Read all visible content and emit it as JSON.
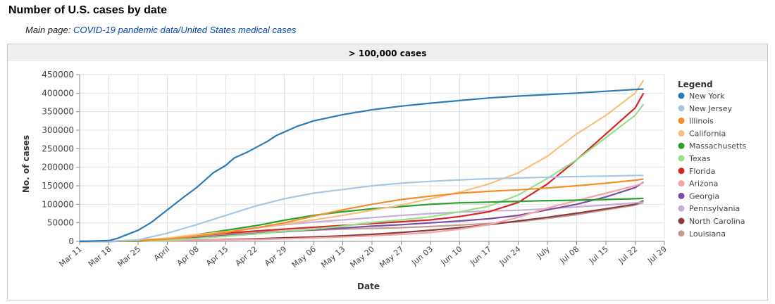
{
  "page": {
    "heading": "Number of U.S. cases by date",
    "main_prefix": "Main page: ",
    "main_link": "COVID-19 pandemic data/United States medical cases"
  },
  "chart_data": {
    "type": "line",
    "title": "> 100,000 cases",
    "xlabel": "Date",
    "ylabel": "No. of cases",
    "ylim": [
      0,
      450000
    ],
    "y_ticks": [
      0,
      50000,
      100000,
      150000,
      200000,
      250000,
      300000,
      350000,
      400000,
      450000
    ],
    "y_tick_labels": [
      "0",
      "50000",
      "100000",
      "150000",
      "200000",
      "250000",
      "300000",
      "350000",
      "400000",
      "450000"
    ],
    "x_tick_labels": [
      "Mar 11",
      "Mar 18",
      "Mar 25",
      "April",
      "Apr 08",
      "Apr 15",
      "Apr 22",
      "Apr 29",
      "May 06",
      "May 13",
      "May 20",
      "May 27",
      "Jun 03",
      "Jun 10",
      "Jun 17",
      "Jun 24",
      "July",
      "Jul 08",
      "Jul 15",
      "Jul 22",
      "Jul 29"
    ],
    "x_tick_days": [
      0,
      7,
      14,
      21,
      28,
      35,
      42,
      49,
      56,
      63,
      70,
      77,
      84,
      91,
      98,
      105,
      112,
      119,
      126,
      133,
      140
    ],
    "x_unit_note": "",
    "grid": true,
    "legend_title": "Legend",
    "legend_position": "right",
    "series": [
      {
        "name": "New York",
        "color": "#2c7bb6",
        "points": [
          [
            "Mar 11",
            0
          ],
          [
            "Mar 18",
            2000
          ],
          [
            "Mar 20",
            8000
          ],
          [
            "Mar 25",
            30000
          ],
          [
            "Mar 28",
            50000
          ],
          [
            "April",
            85000
          ],
          [
            "Apr 05",
            120000
          ],
          [
            "Apr 08",
            145000
          ],
          [
            "Apr 10",
            165000
          ],
          [
            "Apr 12",
            185000
          ],
          [
            "Apr 15",
            205000
          ],
          [
            "Apr 17",
            225000
          ],
          [
            "Apr 20",
            240000
          ],
          [
            "Apr 22",
            252000
          ],
          [
            "Apr 25",
            270000
          ],
          [
            "Apr 27",
            285000
          ],
          [
            "Apr 29",
            295000
          ],
          [
            "May 02",
            310000
          ],
          [
            "May 06",
            325000
          ],
          [
            "May 13",
            342000
          ],
          [
            "May 20",
            355000
          ],
          [
            "May 27",
            365000
          ],
          [
            "Jun 03",
            373000
          ],
          [
            "Jun 10",
            380000
          ],
          [
            "Jun 17",
            387000
          ],
          [
            "Jun 24",
            392000
          ],
          [
            "July",
            396000
          ],
          [
            "Jul 08",
            400000
          ],
          [
            "Jul 15",
            405000
          ],
          [
            "Jul 22",
            410000
          ],
          [
            "Jul 24",
            411000
          ]
        ]
      },
      {
        "name": "New Jersey",
        "color": "#a6c8e8",
        "points": [
          [
            "Mar 11",
            0
          ],
          [
            "Mar 18",
            0
          ],
          [
            "Mar 25",
            4000
          ],
          [
            "April",
            22000
          ],
          [
            "Apr 08",
            45000
          ],
          [
            "Apr 15",
            70000
          ],
          [
            "Apr 22",
            95000
          ],
          [
            "Apr 29",
            115000
          ],
          [
            "May 06",
            130000
          ],
          [
            "May 13",
            140000
          ],
          [
            "May 20",
            150000
          ],
          [
            "May 27",
            157000
          ],
          [
            "Jun 03",
            162000
          ],
          [
            "Jun 10",
            166000
          ],
          [
            "Jun 17",
            169000
          ],
          [
            "Jun 24",
            171000
          ],
          [
            "July",
            173000
          ],
          [
            "Jul 08",
            175000
          ],
          [
            "Jul 15",
            176000
          ],
          [
            "Jul 22",
            178000
          ],
          [
            "Jul 24",
            178000
          ]
        ]
      },
      {
        "name": "Illinois",
        "color": "#f28e2b",
        "points": [
          [
            "Mar 11",
            0
          ],
          [
            "Mar 18",
            0
          ],
          [
            "Mar 25",
            2000
          ],
          [
            "April",
            6000
          ],
          [
            "Apr 08",
            14000
          ],
          [
            "Apr 15",
            24000
          ],
          [
            "Apr 22",
            36000
          ],
          [
            "Apr 29",
            50000
          ],
          [
            "May 06",
            68000
          ],
          [
            "May 13",
            85000
          ],
          [
            "May 20",
            100000
          ],
          [
            "May 27",
            113000
          ],
          [
            "Jun 03",
            122000
          ],
          [
            "Jun 10",
            130000
          ],
          [
            "Jun 17",
            135000
          ],
          [
            "Jun 24",
            139000
          ],
          [
            "July",
            144000
          ],
          [
            "Jul 08",
            150000
          ],
          [
            "Jul 15",
            157000
          ],
          [
            "Jul 22",
            165000
          ],
          [
            "Jul 24",
            168000
          ]
        ]
      },
      {
        "name": "California",
        "color": "#fbbf7c",
        "points": [
          [
            "Mar 11",
            0
          ],
          [
            "Mar 18",
            0
          ],
          [
            "Mar 25",
            3000
          ],
          [
            "April",
            9000
          ],
          [
            "Apr 08",
            18000
          ],
          [
            "Apr 15",
            26000
          ],
          [
            "Apr 22",
            36000
          ],
          [
            "Apr 29",
            47000
          ],
          [
            "May 06",
            58000
          ],
          [
            "May 13",
            70000
          ],
          [
            "May 20",
            84000
          ],
          [
            "May 27",
            98000
          ],
          [
            "Jun 03",
            115000
          ],
          [
            "Jun 10",
            133000
          ],
          [
            "Jun 17",
            155000
          ],
          [
            "Jun 24",
            185000
          ],
          [
            "July",
            230000
          ],
          [
            "Jul 08",
            290000
          ],
          [
            "Jul 15",
            340000
          ],
          [
            "Jul 22",
            400000
          ],
          [
            "Jul 24",
            435000
          ]
        ]
      },
      {
        "name": "Massachusetts",
        "color": "#2ca02c",
        "points": [
          [
            "Mar 11",
            0
          ],
          [
            "Mar 18",
            0
          ],
          [
            "Mar 25",
            1000
          ],
          [
            "April",
            8000
          ],
          [
            "Apr 08",
            18000
          ],
          [
            "Apr 15",
            30000
          ],
          [
            "Apr 22",
            42000
          ],
          [
            "Apr 29",
            57000
          ],
          [
            "May 06",
            70000
          ],
          [
            "May 13",
            80000
          ],
          [
            "May 20",
            88000
          ],
          [
            "May 27",
            94000
          ],
          [
            "Jun 03",
            100000
          ],
          [
            "Jun 10",
            104000
          ],
          [
            "Jun 17",
            106000
          ],
          [
            "Jun 24",
            108000
          ],
          [
            "July",
            110000
          ],
          [
            "Jul 08",
            111000
          ],
          [
            "Jul 15",
            113000
          ],
          [
            "Jul 22",
            115000
          ],
          [
            "Jul 24",
            116000
          ]
        ]
      },
      {
        "name": "Texas",
        "color": "#98df8a",
        "points": [
          [
            "Mar 11",
            0
          ],
          [
            "Mar 18",
            0
          ],
          [
            "Mar 25",
            1000
          ],
          [
            "April",
            3000
          ],
          [
            "Apr 08",
            8000
          ],
          [
            "Apr 15",
            14000
          ],
          [
            "Apr 22",
            20000
          ],
          [
            "Apr 29",
            27000
          ],
          [
            "May 06",
            33000
          ],
          [
            "May 13",
            41000
          ],
          [
            "May 20",
            51000
          ],
          [
            "May 27",
            58000
          ],
          [
            "Jun 03",
            66000
          ],
          [
            "Jun 10",
            80000
          ],
          [
            "Jun 17",
            95000
          ],
          [
            "Jun 24",
            125000
          ],
          [
            "July",
            170000
          ],
          [
            "Jul 08",
            220000
          ],
          [
            "Jul 15",
            280000
          ],
          [
            "Jul 22",
            340000
          ],
          [
            "Jul 24",
            370000
          ]
        ]
      },
      {
        "name": "Florida",
        "color": "#d62728",
        "points": [
          [
            "Mar 11",
            0
          ],
          [
            "Mar 18",
            0
          ],
          [
            "Mar 25",
            2000
          ],
          [
            "April",
            7000
          ],
          [
            "Apr 08",
            15000
          ],
          [
            "Apr 15",
            22000
          ],
          [
            "Apr 22",
            28000
          ],
          [
            "Apr 29",
            33000
          ],
          [
            "May 06",
            38000
          ],
          [
            "May 13",
            43000
          ],
          [
            "May 20",
            48000
          ],
          [
            "May 27",
            53000
          ],
          [
            "Jun 03",
            58000
          ],
          [
            "Jun 10",
            67000
          ],
          [
            "Jun 17",
            80000
          ],
          [
            "Jun 24",
            105000
          ],
          [
            "July",
            155000
          ],
          [
            "Jul 08",
            220000
          ],
          [
            "Jul 15",
            290000
          ],
          [
            "Jul 22",
            360000
          ],
          [
            "Jul 24",
            400000
          ]
        ]
      },
      {
        "name": "Arizona",
        "color": "#f4a6a6",
        "points": [
          [
            "Mar 11",
            0
          ],
          [
            "Mar 18",
            0
          ],
          [
            "Mar 25",
            500
          ],
          [
            "April",
            1500
          ],
          [
            "Apr 08",
            3000
          ],
          [
            "Apr 15",
            4000
          ],
          [
            "Apr 22",
            5000
          ],
          [
            "Apr 29",
            7000
          ],
          [
            "May 06",
            9000
          ],
          [
            "May 13",
            12000
          ],
          [
            "May 20",
            15000
          ],
          [
            "May 27",
            19000
          ],
          [
            "Jun 03",
            24000
          ],
          [
            "Jun 10",
            33000
          ],
          [
            "Jun 17",
            45000
          ],
          [
            "Jun 24",
            65000
          ],
          [
            "July",
            90000
          ],
          [
            "Jul 08",
            110000
          ],
          [
            "Jul 15",
            130000
          ],
          [
            "Jul 22",
            150000
          ],
          [
            "Jul 24",
            158000
          ]
        ]
      },
      {
        "name": "Georgia",
        "color": "#7b4ea3",
        "points": [
          [
            "Mar 11",
            0
          ],
          [
            "Mar 18",
            0
          ],
          [
            "Mar 25",
            1500
          ],
          [
            "April",
            5000
          ],
          [
            "Apr 08",
            10000
          ],
          [
            "Apr 15",
            16000
          ],
          [
            "Apr 22",
            21000
          ],
          [
            "Apr 29",
            26000
          ],
          [
            "May 06",
            31000
          ],
          [
            "May 13",
            36000
          ],
          [
            "May 20",
            41000
          ],
          [
            "May 27",
            45000
          ],
          [
            "Jun 03",
            50000
          ],
          [
            "Jun 10",
            55000
          ],
          [
            "Jun 17",
            61000
          ],
          [
            "Jun 24",
            70000
          ],
          [
            "July",
            85000
          ],
          [
            "Jul 08",
            100000
          ],
          [
            "Jul 15",
            120000
          ],
          [
            "Jul 22",
            145000
          ],
          [
            "Jul 24",
            160000
          ]
        ]
      },
      {
        "name": "Pennsylvania",
        "color": "#c5b0d5",
        "points": [
          [
            "Mar 11",
            0
          ],
          [
            "Mar 18",
            0
          ],
          [
            "Mar 25",
            1500
          ],
          [
            "April",
            6000
          ],
          [
            "Apr 08",
            16000
          ],
          [
            "Apr 15",
            27000
          ],
          [
            "Apr 22",
            36000
          ],
          [
            "Apr 29",
            45000
          ],
          [
            "May 06",
            52000
          ],
          [
            "May 13",
            58000
          ],
          [
            "May 20",
            64000
          ],
          [
            "May 27",
            70000
          ],
          [
            "Jun 03",
            75000
          ],
          [
            "Jun 10",
            79000
          ],
          [
            "Jun 17",
            82000
          ],
          [
            "Jun 24",
            84000
          ],
          [
            "July",
            88000
          ],
          [
            "Jul 08",
            93000
          ],
          [
            "Jul 15",
            98000
          ],
          [
            "Jul 22",
            104000
          ],
          [
            "Jul 24",
            106000
          ]
        ]
      },
      {
        "name": "North Carolina",
        "color": "#8c3b3b",
        "points": [
          [
            "Mar 11",
            0
          ],
          [
            "Mar 18",
            0
          ],
          [
            "Mar 25",
            500
          ],
          [
            "April",
            1500
          ],
          [
            "Apr 08",
            3000
          ],
          [
            "Apr 15",
            5000
          ],
          [
            "Apr 22",
            7000
          ],
          [
            "Apr 29",
            9500
          ],
          [
            "May 06",
            12000
          ],
          [
            "May 13",
            15000
          ],
          [
            "May 20",
            19000
          ],
          [
            "May 27",
            24000
          ],
          [
            "Jun 03",
            30000
          ],
          [
            "Jun 10",
            37000
          ],
          [
            "Jun 17",
            45000
          ],
          [
            "Jun 24",
            55000
          ],
          [
            "July",
            65000
          ],
          [
            "Jul 08",
            76000
          ],
          [
            "Jul 15",
            88000
          ],
          [
            "Jul 22",
            100000
          ],
          [
            "Jul 24",
            110000
          ]
        ]
      },
      {
        "name": "Louisiana",
        "color": "#c49c94",
        "points": [
          [
            "Mar 11",
            0
          ],
          [
            "Mar 18",
            500
          ],
          [
            "Mar 25",
            2000
          ],
          [
            "April",
            6000
          ],
          [
            "Apr 08",
            13000
          ],
          [
            "Apr 15",
            20000
          ],
          [
            "Apr 22",
            25000
          ],
          [
            "Apr 29",
            28000
          ],
          [
            "May 06",
            30000
          ],
          [
            "May 13",
            33000
          ],
          [
            "May 20",
            35000
          ],
          [
            "May 27",
            37000
          ],
          [
            "Jun 03",
            40000
          ],
          [
            "Jun 10",
            44000
          ],
          [
            "Jun 17",
            48000
          ],
          [
            "Jun 24",
            53000
          ],
          [
            "July",
            62000
          ],
          [
            "Jul 08",
            72000
          ],
          [
            "Jul 15",
            85000
          ],
          [
            "Jul 22",
            98000
          ],
          [
            "Jul 24",
            105000
          ]
        ]
      }
    ]
  }
}
